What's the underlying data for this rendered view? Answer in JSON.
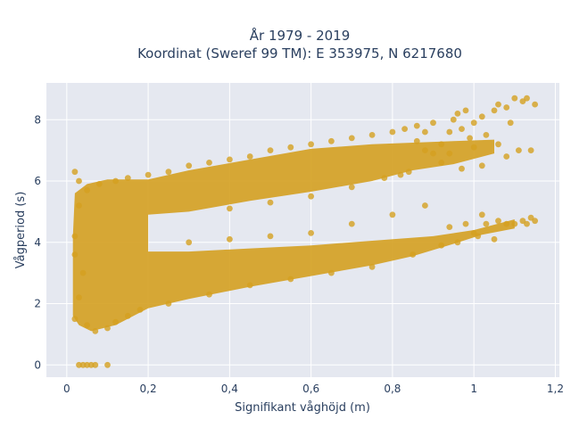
{
  "chart_data": {
    "type": "scatter",
    "title_lines": [
      "År 1979 - 2019",
      "Koordinat (Sweref 99 TM): E 353975, N 6217680"
    ],
    "xlabel": "Signifikant våghöjd (m)",
    "ylabel": "Vågperiod (s)",
    "xlim": [
      -0.05,
      1.21
    ],
    "ylim": [
      -0.4,
      9.2
    ],
    "xticks": [
      0,
      0.2,
      0.4,
      0.6,
      0.8,
      1,
      1.2
    ],
    "xtick_labels": [
      "0",
      "0,2",
      "0,4",
      "0,6",
      "0,8",
      "1",
      "1,2"
    ],
    "yticks": [
      0,
      2,
      4,
      6,
      8
    ],
    "ytick_labels": [
      "0",
      "2",
      "4",
      "6",
      "8"
    ],
    "grid": true,
    "legend": "none",
    "series": [
      {
        "color": "#d4a020",
        "points": [
          [
            0.03,
            0
          ],
          [
            0.04,
            0
          ],
          [
            0.05,
            0
          ],
          [
            0.06,
            0
          ],
          [
            0.07,
            0
          ],
          [
            0.1,
            0
          ],
          [
            0.02,
            1.5
          ],
          [
            0.03,
            2.2
          ],
          [
            0.04,
            3.0
          ],
          [
            0.02,
            4.2
          ],
          [
            0.03,
            5.2
          ],
          [
            0.02,
            6.3
          ],
          [
            0.03,
            6.0
          ],
          [
            0.02,
            3.6
          ],
          [
            0.05,
            1.3
          ],
          [
            0.07,
            1.1
          ],
          [
            0.1,
            1.2
          ],
          [
            0.12,
            1.4
          ],
          [
            0.15,
            1.6
          ],
          [
            0.18,
            1.8
          ],
          [
            0.05,
            5.7
          ],
          [
            0.08,
            5.9
          ],
          [
            0.12,
            6.0
          ],
          [
            0.15,
            6.1
          ],
          [
            0.2,
            6.2
          ],
          [
            0.25,
            6.3
          ],
          [
            0.3,
            6.5
          ],
          [
            0.35,
            6.6
          ],
          [
            0.4,
            6.7
          ],
          [
            0.45,
            6.8
          ],
          [
            0.5,
            7.0
          ],
          [
            0.55,
            7.1
          ],
          [
            0.6,
            7.2
          ],
          [
            0.65,
            7.3
          ],
          [
            0.7,
            7.4
          ],
          [
            0.75,
            7.5
          ],
          [
            0.8,
            7.6
          ],
          [
            0.83,
            7.7
          ],
          [
            0.86,
            7.8
          ],
          [
            0.88,
            7.6
          ],
          [
            0.9,
            7.9
          ],
          [
            0.92,
            7.2
          ],
          [
            0.94,
            7.6
          ],
          [
            0.95,
            8.0
          ],
          [
            0.96,
            8.2
          ],
          [
            0.97,
            7.7
          ],
          [
            0.98,
            8.3
          ],
          [
            0.99,
            7.4
          ],
          [
            1.0,
            7.9
          ],
          [
            1.02,
            8.1
          ],
          [
            1.03,
            7.5
          ],
          [
            1.05,
            8.3
          ],
          [
            1.06,
            8.5
          ],
          [
            1.08,
            8.4
          ],
          [
            1.09,
            7.9
          ],
          [
            1.1,
            8.7
          ],
          [
            1.12,
            8.6
          ],
          [
            1.13,
            8.7
          ],
          [
            1.14,
            7.0
          ],
          [
            1.15,
            8.5
          ],
          [
            0.84,
            6.3
          ],
          [
            0.86,
            7.3
          ],
          [
            0.88,
            7.0
          ],
          [
            0.9,
            6.9
          ],
          [
            0.92,
            6.6
          ],
          [
            0.94,
            6.9
          ],
          [
            0.97,
            6.4
          ],
          [
            1.0,
            7.1
          ],
          [
            1.02,
            6.5
          ],
          [
            1.06,
            7.2
          ],
          [
            1.08,
            6.8
          ],
          [
            1.11,
            7.0
          ],
          [
            0.94,
            4.5
          ],
          [
            0.96,
            4.0
          ],
          [
            0.98,
            4.6
          ],
          [
            1.0,
            4.3
          ],
          [
            1.01,
            4.2
          ],
          [
            1.02,
            4.9
          ],
          [
            1.03,
            4.6
          ],
          [
            1.05,
            4.1
          ],
          [
            1.06,
            4.7
          ],
          [
            1.08,
            4.6
          ],
          [
            1.1,
            4.6
          ],
          [
            1.12,
            4.7
          ],
          [
            1.13,
            4.6
          ],
          [
            1.14,
            4.8
          ],
          [
            1.15,
            4.7
          ],
          [
            0.25,
            2.0
          ],
          [
            0.35,
            2.3
          ],
          [
            0.45,
            2.6
          ],
          [
            0.55,
            2.8
          ],
          [
            0.65,
            3.0
          ],
          [
            0.75,
            3.2
          ],
          [
            0.85,
            3.6
          ],
          [
            0.92,
            3.9
          ],
          [
            0.3,
            4.0
          ],
          [
            0.4,
            4.1
          ],
          [
            0.5,
            4.2
          ],
          [
            0.6,
            4.3
          ],
          [
            0.7,
            4.6
          ],
          [
            0.8,
            4.9
          ],
          [
            0.88,
            5.2
          ],
          [
            0.4,
            5.1
          ],
          [
            0.5,
            5.3
          ],
          [
            0.6,
            5.5
          ],
          [
            0.7,
            5.8
          ],
          [
            0.78,
            6.1
          ],
          [
            0.82,
            6.2
          ]
        ]
      }
    ]
  }
}
